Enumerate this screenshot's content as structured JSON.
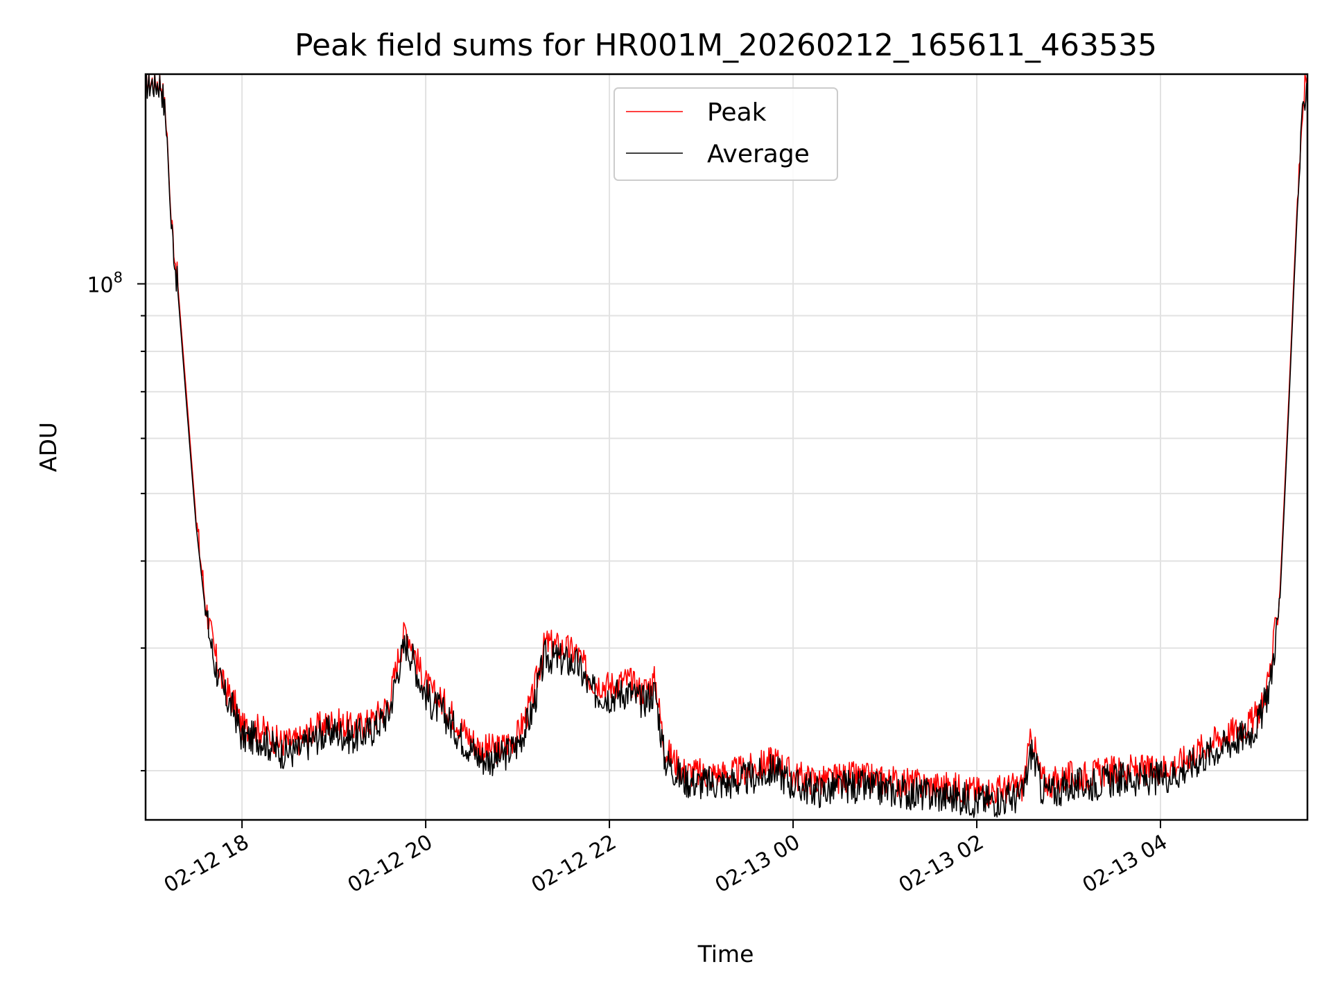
{
  "chart_data": {
    "type": "line",
    "title": "Peak field sums for HR001M_20260212_165611_463535",
    "xlabel": "Time",
    "ylabel": "ADU",
    "y_scale": "log",
    "ylim": [
      17000000,
      200000000
    ],
    "xlim_hours": [
      16.95,
      5.6
    ],
    "x_ticks": [
      {
        "hour": 18,
        "label": "02-12 18"
      },
      {
        "hour": 20,
        "label": "02-12 20"
      },
      {
        "hour": 22,
        "label": "02-12 22"
      },
      {
        "hour": 24,
        "label": "02-13 00"
      },
      {
        "hour": 26,
        "label": "02-13 02"
      },
      {
        "hour": 28,
        "label": "02-13 04"
      }
    ],
    "y_major_ticks": [
      {
        "value": 100000000,
        "base": "10",
        "exp": "8"
      }
    ],
    "y_minor_ticks": [
      20000000,
      30000000,
      40000000,
      50000000,
      60000000,
      70000000,
      80000000,
      90000000
    ],
    "grid": true,
    "legend": {
      "position": "top-center",
      "entries": [
        {
          "name": "Peak",
          "color": "#ff0000"
        },
        {
          "name": "Average",
          "color": "#000000"
        }
      ]
    },
    "series": [
      {
        "name": "Peak",
        "color": "#ff0000",
        "x": [
          16.95,
          17.05,
          17.12,
          17.18,
          17.22,
          17.3,
          17.4,
          17.5,
          17.6,
          17.7,
          17.8,
          17.92,
          18.0,
          18.2,
          18.4,
          18.6,
          18.8,
          19.0,
          19.2,
          19.4,
          19.6,
          19.7,
          19.78,
          19.85,
          19.95,
          20.05,
          20.2,
          20.4,
          20.6,
          20.8,
          21.0,
          21.15,
          21.3,
          21.5,
          21.65,
          21.8,
          22.0,
          22.2,
          22.35,
          22.5,
          22.6,
          22.8,
          23.0,
          23.3,
          23.6,
          23.8,
          24.0,
          24.3,
          24.6,
          25.0,
          25.4,
          25.8,
          26.0,
          26.3,
          26.5,
          26.6,
          26.7,
          26.8,
          27.0,
          27.3,
          27.6,
          27.9,
          28.2,
          28.5,
          28.8,
          29.0,
          29.1,
          29.2,
          29.3,
          29.35,
          29.4,
          29.45,
          29.5,
          29.55,
          29.6
        ],
        "y": [
          195000000,
          195000000,
          195000000,
          170000000,
          128000000,
          100000000,
          68000000,
          46000000,
          35000000,
          29500000,
          26500000,
          25000000,
          23000000,
          23000000,
          22000000,
          22000000,
          23000000,
          23500000,
          23000000,
          23500000,
          25000000,
          29000000,
          32000000,
          30500000,
          27500000,
          26000000,
          25000000,
          23000000,
          21500000,
          21500000,
          22500000,
          25000000,
          30500000,
          30000000,
          29500000,
          27000000,
          26500000,
          27000000,
          26000000,
          27000000,
          21500000,
          20000000,
          19800000,
          19800000,
          20200000,
          20800000,
          19700000,
          19300000,
          19600000,
          19400000,
          19100000,
          18900000,
          18700000,
          18800000,
          19000000,
          22500000,
          19500000,
          19200000,
          19600000,
          19800000,
          20100000,
          20000000,
          20500000,
          21800000,
          22800000,
          23500000,
          24800000,
          28000000,
          36000000,
          50000000,
          70000000,
          100000000,
          140000000,
          180000000,
          205000000
        ]
      },
      {
        "name": "Average",
        "color": "#000000",
        "x": [
          16.95,
          17.05,
          17.12,
          17.18,
          17.22,
          17.3,
          17.4,
          17.5,
          17.6,
          17.7,
          17.8,
          17.92,
          18.0,
          18.2,
          18.4,
          18.6,
          18.8,
          19.0,
          19.2,
          19.4,
          19.6,
          19.7,
          19.78,
          19.85,
          19.95,
          20.05,
          20.2,
          20.4,
          20.6,
          20.8,
          21.0,
          21.15,
          21.3,
          21.5,
          21.65,
          21.8,
          22.0,
          22.2,
          22.35,
          22.5,
          22.6,
          22.8,
          23.0,
          23.3,
          23.6,
          23.8,
          24.0,
          24.3,
          24.6,
          25.0,
          25.4,
          25.8,
          26.0,
          26.3,
          26.5,
          26.6,
          26.7,
          26.8,
          27.0,
          27.3,
          27.6,
          27.9,
          28.2,
          28.5,
          28.8,
          29.0,
          29.1,
          29.2,
          29.3,
          29.35,
          29.4,
          29.45,
          29.5,
          29.55,
          29.6
        ],
        "y": [
          194000000,
          194000000,
          194000000,
          168000000,
          126000000,
          98000000,
          66000000,
          45000000,
          34000000,
          28500000,
          25800000,
          24300000,
          22300000,
          22300000,
          21300000,
          21300000,
          22300000,
          22800000,
          22300000,
          22800000,
          24200000,
          28000000,
          30500000,
          29200000,
          26600000,
          25100000,
          24100000,
          22200000,
          20800000,
          20800000,
          21800000,
          24100000,
          29200000,
          28800000,
          28400000,
          26000000,
          25600000,
          26000000,
          25100000,
          26000000,
          20800000,
          19400000,
          19200000,
          19200000,
          19600000,
          20100000,
          19100000,
          18700000,
          19000000,
          18800000,
          18500000,
          18300000,
          18100000,
          18200000,
          18400000,
          21500000,
          18900000,
          18600000,
          19000000,
          19200000,
          19500000,
          19400000,
          19900000,
          21100000,
          22100000,
          22800000,
          24000000,
          27000000,
          35000000,
          48500000,
          68000000,
          97000000,
          136000000,
          175000000,
          200000000
        ]
      }
    ]
  }
}
